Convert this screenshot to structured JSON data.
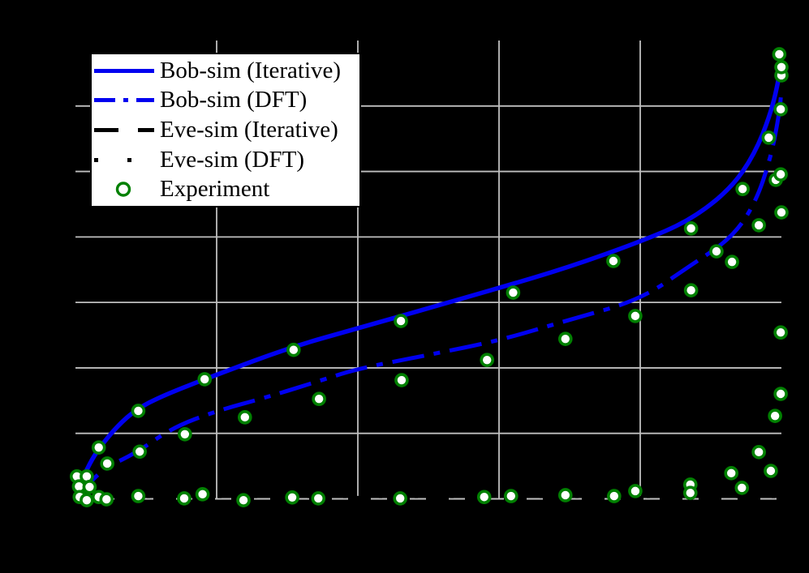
{
  "figure": {
    "background_color": "#000000",
    "note": "Axis box, tick marks, tick labels and axis titles are rendered in black on a black background and are not visible in the pixels; only gridlines, curves, markers and the legend are visible."
  },
  "legend": {
    "position": "top-left",
    "background_color": "#ffffff",
    "border_color": "#000000",
    "text_color": "#000000",
    "items": [
      {
        "label": "Bob-sim (Iterative)",
        "color": "#0000f0",
        "line_style": "solid",
        "marker": "none"
      },
      {
        "label": "Bob-sim (DFT)",
        "color": "#0000f0",
        "line_style": "dash-dot",
        "marker": "none"
      },
      {
        "label": "Eve-sim (Iterative)",
        "color": "#000000",
        "line_style": "dashed",
        "marker": "none"
      },
      {
        "label": "Eve-sim (DFT)",
        "color": "#000000",
        "line_style": "dotted",
        "marker": "none"
      },
      {
        "label": "Experiment",
        "color": "#008000",
        "line_style": "none",
        "marker": "open-circle"
      }
    ]
  },
  "chart_data": {
    "type": "line",
    "title": "",
    "xlabel": "",
    "ylabel": "",
    "tick_labels_visible": false,
    "x_range_normalized": [
      0,
      1
    ],
    "y_range_normalized": [
      0,
      1
    ],
    "grid": {
      "on": true,
      "color": "#bfbfbf",
      "vertical_x": [
        0.2,
        0.4,
        0.6,
        0.8
      ],
      "horizontal_y": [
        0.1429,
        0.2857,
        0.4286,
        0.5714,
        0.7143,
        0.8571
      ]
    },
    "series": [
      {
        "name": "Eve-sim (Iterative)",
        "color": "#000000",
        "style": "dashed",
        "width": 5,
        "points": [
          [
            0,
            0.002
          ],
          [
            1,
            0.002
          ]
        ]
      },
      {
        "name": "Eve-sim (DFT)",
        "color": "#000000",
        "style": "dotted",
        "width": 5,
        "points": [
          [
            0,
            0.006
          ],
          [
            1,
            0.006
          ]
        ]
      },
      {
        "name": "Bob-sim (DFT)",
        "color": "#0000f0",
        "style": "dash-dot",
        "width": 5,
        "points": [
          [
            0,
            0.001
          ],
          [
            0.02,
            0.036
          ],
          [
            0.043,
            0.068
          ],
          [
            0.089,
            0.103
          ],
          [
            0.137,
            0.155
          ],
          [
            0.2,
            0.192
          ],
          [
            0.272,
            0.222
          ],
          [
            0.353,
            0.261
          ],
          [
            0.4,
            0.284
          ],
          [
            0.5,
            0.314
          ],
          [
            0.602,
            0.346
          ],
          [
            0.698,
            0.39
          ],
          [
            0.8,
            0.434
          ],
          [
            0.87,
            0.508
          ],
          [
            0.928,
            0.567
          ],
          [
            0.962,
            0.641
          ],
          [
            0.985,
            0.744
          ],
          [
            0.997,
            0.841
          ],
          [
            1,
            0.89
          ]
        ]
      },
      {
        "name": "Bob-sim (Iterative)",
        "color": "#0000f0",
        "style": "solid",
        "width": 5.5,
        "points": [
          [
            0,
            0.006
          ],
          [
            0.008,
            0.036
          ],
          [
            0.02,
            0.077
          ],
          [
            0.034,
            0.112
          ],
          [
            0.06,
            0.16
          ],
          [
            0.086,
            0.195
          ],
          [
            0.123,
            0.225
          ],
          [
            0.2,
            0.271
          ],
          [
            0.307,
            0.332
          ],
          [
            0.4,
            0.372
          ],
          [
            0.5,
            0.416
          ],
          [
            0.602,
            0.461
          ],
          [
            0.698,
            0.505
          ],
          [
            0.8,
            0.561
          ],
          [
            0.87,
            0.607
          ],
          [
            0.928,
            0.676
          ],
          [
            0.962,
            0.752
          ],
          [
            0.985,
            0.841
          ],
          [
            0.997,
            0.92
          ],
          [
            1,
            0.968
          ]
        ]
      },
      {
        "name": "Experiment",
        "color": "#008000",
        "style": "none",
        "marker": "open-circle",
        "marker_face": "#ffffff",
        "points": [
          [
            0.033,
            0.112
          ],
          [
            0.089,
            0.192
          ],
          [
            0.183,
            0.261
          ],
          [
            0.309,
            0.325
          ],
          [
            0.461,
            0.388
          ],
          [
            0.62,
            0.45
          ],
          [
            0.762,
            0.519
          ],
          [
            0.872,
            0.59
          ],
          [
            0.945,
            0.676
          ],
          [
            0.982,
            0.788
          ],
          [
            1.0,
            0.924
          ],
          [
            1.0,
            0.942
          ],
          [
            0.997,
            0.97
          ],
          [
            0.002,
            0.049
          ],
          [
            0.005,
            0.027
          ],
          [
            0.016,
            0.049
          ],
          [
            0.02,
            0.026
          ],
          [
            0.045,
            0.077
          ],
          [
            0.091,
            0.103
          ],
          [
            0.155,
            0.141
          ],
          [
            0.24,
            0.178
          ],
          [
            0.345,
            0.218
          ],
          [
            0.462,
            0.259
          ],
          [
            0.583,
            0.303
          ],
          [
            0.694,
            0.349
          ],
          [
            0.793,
            0.399
          ],
          [
            0.872,
            0.455
          ],
          [
            0.93,
            0.517
          ],
          [
            0.968,
            0.597
          ],
          [
            0.999,
            0.85
          ],
          [
            0.006,
            0.004
          ],
          [
            0.016,
            -0.003
          ],
          [
            0.033,
            0.004
          ],
          [
            0.044,
            -0.001
          ],
          [
            0.089,
            0.006
          ],
          [
            0.154,
            0.001
          ],
          [
            0.18,
            0.01
          ],
          [
            0.238,
            -0.003
          ],
          [
            0.307,
            0.003
          ],
          [
            0.344,
            0.001
          ],
          [
            0.46,
            0.001
          ],
          [
            0.579,
            0.004
          ],
          [
            0.617,
            0.006
          ],
          [
            0.694,
            0.008
          ],
          [
            0.763,
            0.006
          ],
          [
            0.793,
            0.017
          ],
          [
            0.871,
            0.031
          ],
          [
            0.871,
            0.013
          ],
          [
            0.929,
            0.056
          ],
          [
            0.944,
            0.024
          ],
          [
            0.968,
            0.102
          ],
          [
            0.985,
            0.061
          ],
          [
            0.991,
            0.181
          ],
          [
            0.999,
            0.229
          ],
          [
            0.999,
            0.363
          ],
          [
            1.0,
            0.625
          ],
          [
            0.908,
            0.54
          ],
          [
            0.992,
            0.696
          ],
          [
            0.999,
            0.708
          ]
        ]
      }
    ],
    "legend_position": "top-left"
  }
}
